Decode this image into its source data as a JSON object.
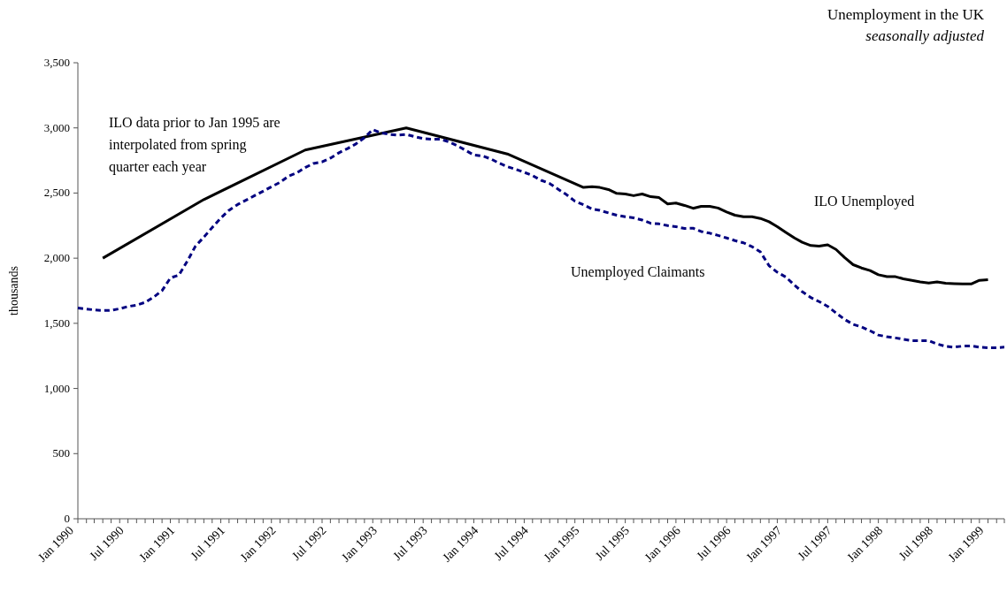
{
  "chart_data": {
    "type": "line",
    "title": "Unemployment in the UK",
    "subtitle": "seasonally adjusted",
    "ylabel": "thousands",
    "annotations": [
      "ILO data prior to Jan 1995 are interpolated from spring quarter each year"
    ],
    "legend": false,
    "grid": false,
    "marker": "none",
    "xlim": [
      "1990-01",
      "1999-03"
    ],
    "xticks": [
      {
        "value": "1990-01",
        "label": "Jan 1990"
      },
      {
        "value": "1990-02",
        "label": null
      },
      {
        "value": "1990-03",
        "label": null
      },
      {
        "value": "1990-04",
        "label": null
      },
      {
        "value": "1990-05",
        "label": null
      },
      {
        "value": "1990-06",
        "label": null
      },
      {
        "value": "1990-07",
        "label": "Jul 1990"
      },
      {
        "value": "1990-08",
        "label": null
      },
      {
        "value": "1990-09",
        "label": null
      },
      {
        "value": "1990-10",
        "label": null
      },
      {
        "value": "1990-11",
        "label": null
      },
      {
        "value": "1990-12",
        "label": null
      },
      {
        "value": "1991-01",
        "label": "Jan 1991"
      },
      {
        "value": "1991-02",
        "label": null
      },
      {
        "value": "1991-03",
        "label": null
      },
      {
        "value": "1991-04",
        "label": null
      },
      {
        "value": "1991-05",
        "label": null
      },
      {
        "value": "1991-06",
        "label": null
      },
      {
        "value": "1991-07",
        "label": "Jul 1991"
      },
      {
        "value": "1991-08",
        "label": null
      },
      {
        "value": "1991-09",
        "label": null
      },
      {
        "value": "1991-10",
        "label": null
      },
      {
        "value": "1991-11",
        "label": null
      },
      {
        "value": "1991-12",
        "label": null
      },
      {
        "value": "1992-01",
        "label": "Jan 1992"
      },
      {
        "value": "1992-02",
        "label": null
      },
      {
        "value": "1992-03",
        "label": null
      },
      {
        "value": "1992-04",
        "label": null
      },
      {
        "value": "1992-05",
        "label": null
      },
      {
        "value": "1992-06",
        "label": null
      },
      {
        "value": "1992-07",
        "label": "Jul 1992"
      },
      {
        "value": "1992-08",
        "label": null
      },
      {
        "value": "1992-09",
        "label": null
      },
      {
        "value": "1992-10",
        "label": null
      },
      {
        "value": "1992-11",
        "label": null
      },
      {
        "value": "1992-12",
        "label": null
      },
      {
        "value": "1993-01",
        "label": "Jan 1993"
      },
      {
        "value": "1993-02",
        "label": null
      },
      {
        "value": "1993-03",
        "label": null
      },
      {
        "value": "1993-04",
        "label": null
      },
      {
        "value": "1993-05",
        "label": null
      },
      {
        "value": "1993-06",
        "label": null
      },
      {
        "value": "1993-07",
        "label": "Jul 1993"
      },
      {
        "value": "1993-08",
        "label": null
      },
      {
        "value": "1993-09",
        "label": null
      },
      {
        "value": "1993-10",
        "label": null
      },
      {
        "value": "1993-11",
        "label": null
      },
      {
        "value": "1993-12",
        "label": null
      },
      {
        "value": "1994-01",
        "label": "Jan 1994"
      },
      {
        "value": "1994-02",
        "label": null
      },
      {
        "value": "1994-03",
        "label": null
      },
      {
        "value": "1994-04",
        "label": null
      },
      {
        "value": "1994-05",
        "label": null
      },
      {
        "value": "1994-06",
        "label": null
      },
      {
        "value": "1994-07",
        "label": "Jul 1994"
      },
      {
        "value": "1994-08",
        "label": null
      },
      {
        "value": "1994-09",
        "label": null
      },
      {
        "value": "1994-10",
        "label": null
      },
      {
        "value": "1994-11",
        "label": null
      },
      {
        "value": "1994-12",
        "label": null
      },
      {
        "value": "1995-01",
        "label": "Jan 1995"
      },
      {
        "value": "1995-02",
        "label": null
      },
      {
        "value": "1995-03",
        "label": null
      },
      {
        "value": "1995-04",
        "label": null
      },
      {
        "value": "1995-05",
        "label": null
      },
      {
        "value": "1995-06",
        "label": null
      },
      {
        "value": "1995-07",
        "label": "Jul 1995"
      },
      {
        "value": "1995-08",
        "label": null
      },
      {
        "value": "1995-09",
        "label": null
      },
      {
        "value": "1995-10",
        "label": null
      },
      {
        "value": "1995-11",
        "label": null
      },
      {
        "value": "1995-12",
        "label": null
      },
      {
        "value": "1996-01",
        "label": "Jan 1996"
      },
      {
        "value": "1996-02",
        "label": null
      },
      {
        "value": "1996-03",
        "label": null
      },
      {
        "value": "1996-04",
        "label": null
      },
      {
        "value": "1996-05",
        "label": null
      },
      {
        "value": "1996-06",
        "label": null
      },
      {
        "value": "1996-07",
        "label": "Jul 1996"
      },
      {
        "value": "1996-08",
        "label": null
      },
      {
        "value": "1996-09",
        "label": null
      },
      {
        "value": "1996-10",
        "label": null
      },
      {
        "value": "1996-11",
        "label": null
      },
      {
        "value": "1996-12",
        "label": null
      },
      {
        "value": "1997-01",
        "label": "Jan 1997"
      },
      {
        "value": "1997-02",
        "label": null
      },
      {
        "value": "1997-03",
        "label": null
      },
      {
        "value": "1997-04",
        "label": null
      },
      {
        "value": "1997-05",
        "label": null
      },
      {
        "value": "1997-06",
        "label": null
      },
      {
        "value": "1997-07",
        "label": "Jul 1997"
      },
      {
        "value": "1997-08",
        "label": null
      },
      {
        "value": "1997-09",
        "label": null
      },
      {
        "value": "1997-10",
        "label": null
      },
      {
        "value": "1997-11",
        "label": null
      },
      {
        "value": "1997-12",
        "label": null
      },
      {
        "value": "1998-01",
        "label": "Jan 1998"
      },
      {
        "value": "1998-02",
        "label": null
      },
      {
        "value": "1998-03",
        "label": null
      },
      {
        "value": "1998-04",
        "label": null
      },
      {
        "value": "1998-05",
        "label": null
      },
      {
        "value": "1998-06",
        "label": null
      },
      {
        "value": "1998-07",
        "label": "Jul 1998"
      },
      {
        "value": "1998-08",
        "label": null
      },
      {
        "value": "1998-09",
        "label": null
      },
      {
        "value": "1998-10",
        "label": null
      },
      {
        "value": "1998-11",
        "label": null
      },
      {
        "value": "1998-12",
        "label": null
      },
      {
        "value": "1999-01",
        "label": "Jan 1999"
      },
      {
        "value": "1999-02",
        "label": null
      },
      {
        "value": "1999-03",
        "label": null
      }
    ],
    "ylim": [
      0,
      3500
    ],
    "yticks": [
      0,
      500,
      {
        "value": 1000,
        "label": "1,000"
      },
      {
        "value": 1500,
        "label": "1,500"
      },
      {
        "value": 2000,
        "label": "2,000"
      },
      {
        "value": 2500,
        "label": "2,500"
      },
      {
        "value": 3000,
        "label": "3,000"
      },
      {
        "value": 3500,
        "label": "3,500"
      }
    ],
    "series": [
      {
        "name": "ILO Unemployed",
        "color": "#000000",
        "line_style": "solid",
        "x": [
          "1990-04",
          "1991-04",
          "1992-04",
          "1993-04",
          "1994-04",
          "1995-01",
          "1995-02",
          "1995-03",
          "1995-04",
          "1995-05",
          "1995-06",
          "1995-07",
          "1995-08",
          "1995-09",
          "1995-10",
          "1995-11",
          "1995-12",
          "1996-01",
          "1996-02",
          "1996-03",
          "1996-04",
          "1996-05",
          "1996-06",
          "1996-07",
          "1996-08",
          "1996-09",
          "1996-10",
          "1996-11",
          "1996-12",
          "1997-01",
          "1997-02",
          "1997-03",
          "1997-04",
          "1997-05",
          "1997-06",
          "1997-07",
          "1997-08",
          "1997-09",
          "1997-10",
          "1997-11",
          "1997-12",
          "1998-01",
          "1998-02",
          "1998-03",
          "1998-04",
          "1998-05",
          "1998-06",
          "1998-07",
          "1998-08",
          "1998-09",
          "1998-10",
          "1998-11",
          "1998-12",
          "1999-01"
        ],
        "values": [
          2000,
          2450,
          2830,
          3000,
          2800,
          2543,
          2548,
          2543,
          2527,
          2497,
          2493,
          2480,
          2493,
          2472,
          2465,
          2417,
          2423,
          2405,
          2383,
          2398,
          2398,
          2385,
          2355,
          2330,
          2318,
          2318,
          2305,
          2280,
          2242,
          2198,
          2155,
          2122,
          2097,
          2093,
          2103,
          2067,
          2005,
          1950,
          1925,
          1905,
          1873,
          1858,
          1858,
          1842,
          1830,
          1818,
          1810,
          1818,
          1808,
          1805,
          1802,
          1802,
          1830,
          1835
        ]
      },
      {
        "name": "Unemployed Claimants",
        "color": "#000080",
        "line_style": "dashed",
        "x": [
          "1990-01",
          "1990-02",
          "1990-03",
          "1990-04",
          "1990-05",
          "1990-06",
          "1990-07",
          "1990-08",
          "1990-09",
          "1990-10",
          "1990-11",
          "1990-12",
          "1991-01",
          "1991-02",
          "1991-03",
          "1991-04",
          "1991-05",
          "1991-06",
          "1991-07",
          "1991-08",
          "1991-09",
          "1991-10",
          "1991-11",
          "1991-12",
          "1992-01",
          "1992-02",
          "1992-03",
          "1992-04",
          "1992-05",
          "1992-06",
          "1992-07",
          "1992-08",
          "1992-09",
          "1992-10",
          "1992-11",
          "1992-12",
          "1993-01",
          "1993-02",
          "1993-03",
          "1993-04",
          "1993-05",
          "1993-06",
          "1993-07",
          "1993-08",
          "1993-09",
          "1993-10",
          "1993-11",
          "1993-12",
          "1994-01",
          "1994-02",
          "1994-03",
          "1994-04",
          "1994-05",
          "1994-06",
          "1994-07",
          "1994-08",
          "1994-09",
          "1994-10",
          "1994-11",
          "1994-12",
          "1995-01",
          "1995-02",
          "1995-03",
          "1995-04",
          "1995-05",
          "1995-06",
          "1995-07",
          "1995-08",
          "1995-09",
          "1995-10",
          "1995-11",
          "1995-12",
          "1996-01",
          "1996-02",
          "1996-03",
          "1996-04",
          "1996-05",
          "1996-06",
          "1996-07",
          "1996-08",
          "1996-09",
          "1996-10",
          "1996-11",
          "1996-12",
          "1997-01",
          "1997-02",
          "1997-03",
          "1997-04",
          "1997-05",
          "1997-06",
          "1997-07",
          "1997-08",
          "1997-09",
          "1997-10",
          "1997-11",
          "1997-12",
          "1998-01",
          "1998-02",
          "1998-03",
          "1998-04",
          "1998-05",
          "1998-06",
          "1998-07",
          "1998-08",
          "1998-09",
          "1998-10",
          "1998-11",
          "1998-12",
          "1999-01",
          "1999-02",
          "1999-03"
        ],
        "values": [
          1617,
          1610,
          1603,
          1598,
          1600,
          1612,
          1629,
          1640,
          1661,
          1700,
          1751,
          1848,
          1871,
          1980,
          2090,
          2162,
          2235,
          2308,
          2368,
          2412,
          2446,
          2480,
          2514,
          2548,
          2582,
          2630,
          2654,
          2695,
          2727,
          2739,
          2768,
          2809,
          2841,
          2877,
          2925,
          2986,
          2961,
          2950,
          2944,
          2950,
          2933,
          2918,
          2913,
          2913,
          2894,
          2865,
          2828,
          2792,
          2785,
          2761,
          2731,
          2702,
          2683,
          2659,
          2634,
          2598,
          2573,
          2530,
          2487,
          2438,
          2410,
          2377,
          2367,
          2348,
          2330,
          2318,
          2310,
          2293,
          2268,
          2263,
          2250,
          2242,
          2228,
          2230,
          2205,
          2192,
          2175,
          2155,
          2135,
          2118,
          2088,
          2048,
          1943,
          1892,
          1855,
          1793,
          1743,
          1698,
          1667,
          1630,
          1580,
          1530,
          1492,
          1473,
          1443,
          1410,
          1397,
          1388,
          1378,
          1367,
          1367,
          1367,
          1342,
          1323,
          1317,
          1325,
          1327,
          1317,
          1313,
          1313,
          1317
        ]
      }
    ]
  }
}
